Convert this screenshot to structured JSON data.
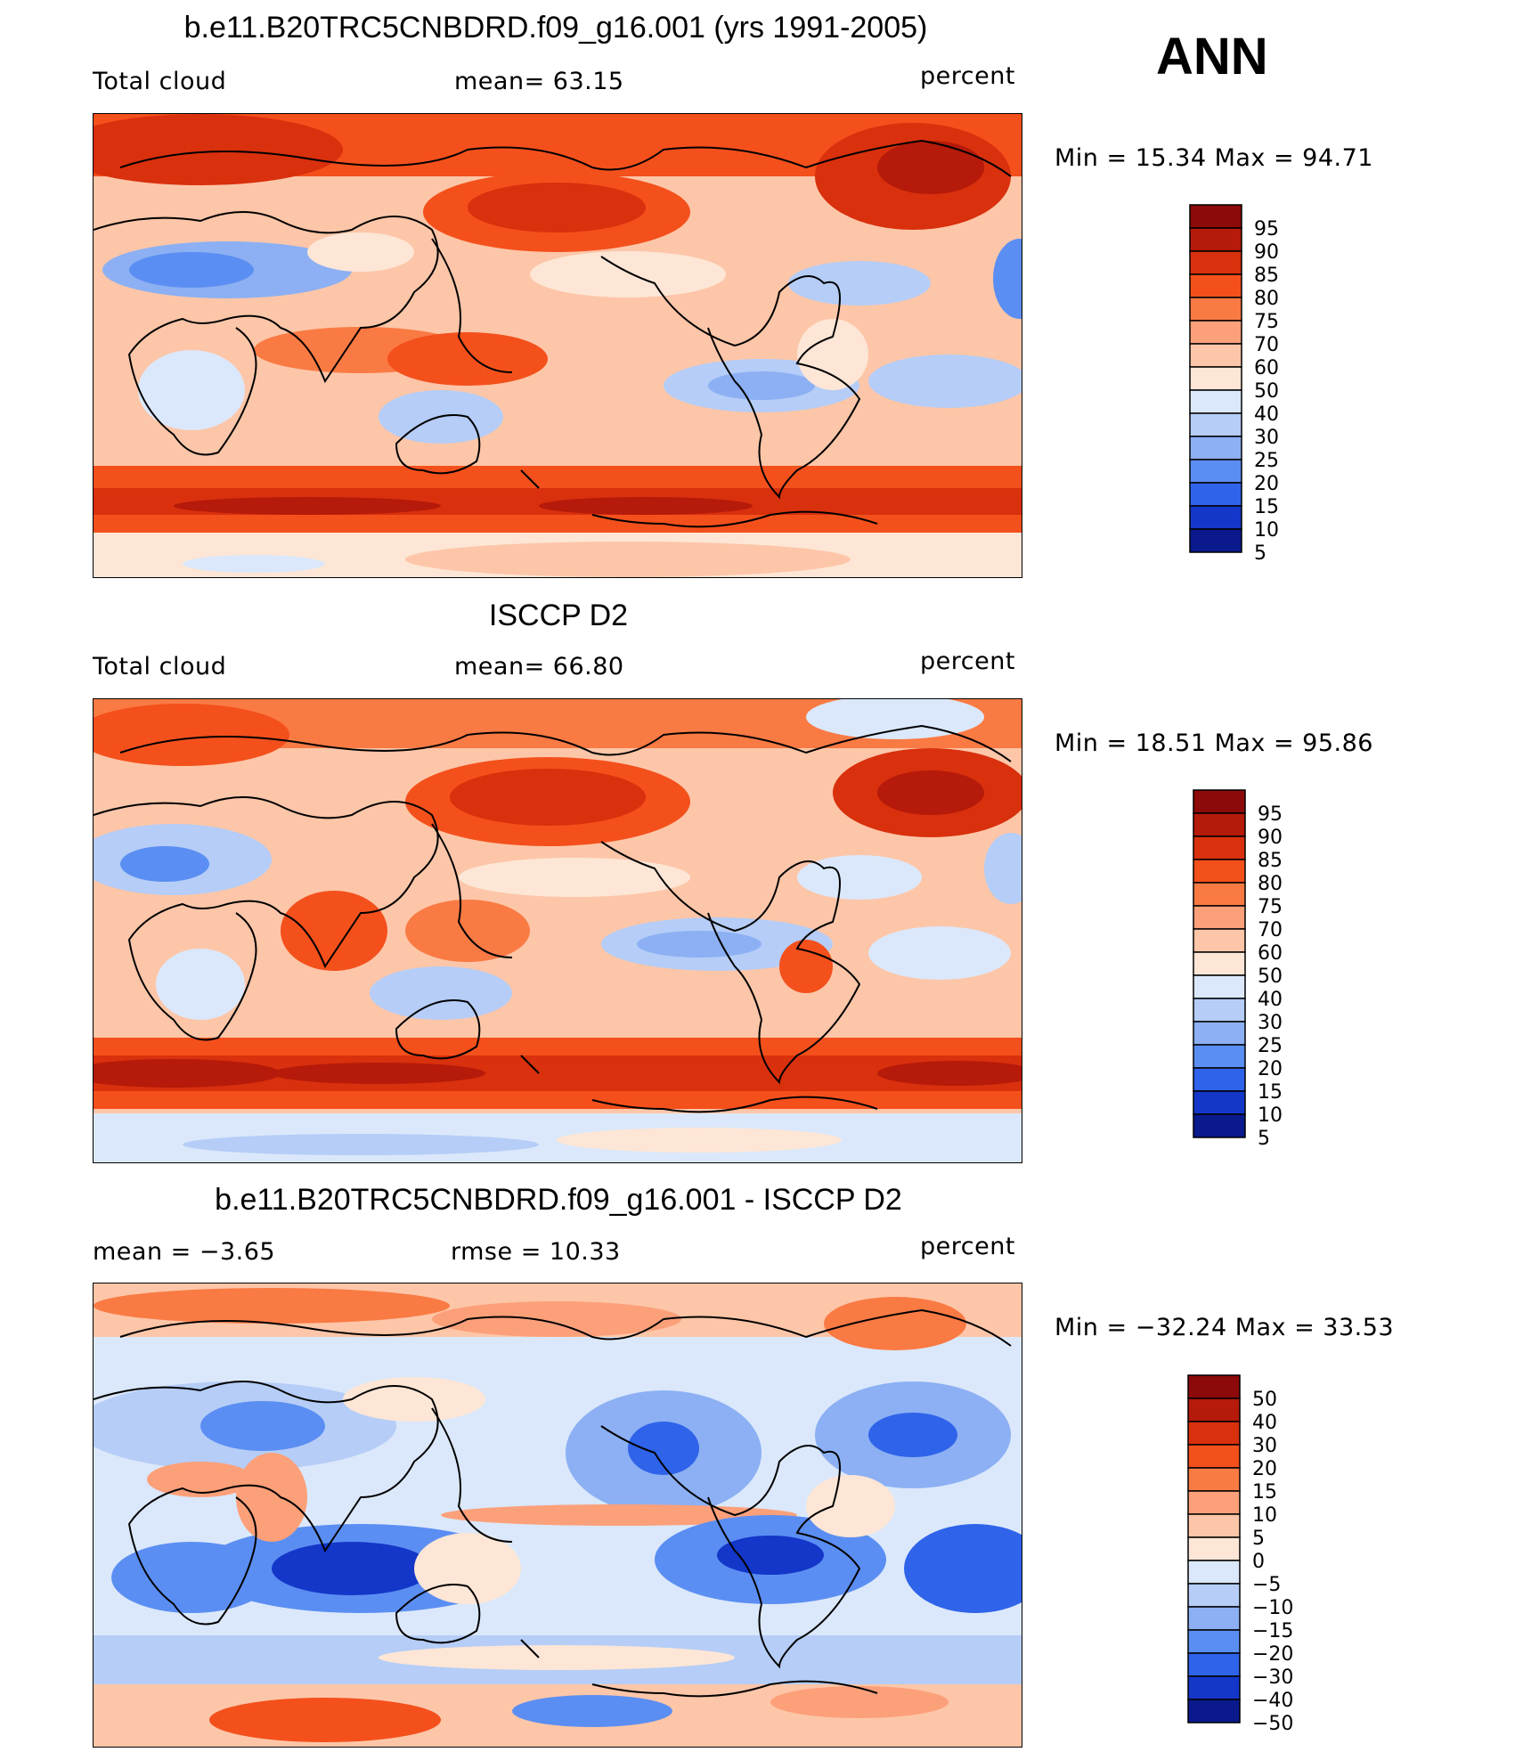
{
  "season": "ANN",
  "panels": [
    {
      "id": "model",
      "title": "b.e11.B20TRC5CNBDRD.f09_g16.001 (yrs 1991-2005)",
      "left_label": "Total cloud",
      "center_label": "mean=   63.15",
      "units": "percent",
      "minmax": "Min =   15.34  Max =   94.71",
      "levels": [
        "95",
        "90",
        "85",
        "80",
        "75",
        "70",
        "60",
        "50",
        "40",
        "30",
        "25",
        "20",
        "15",
        "10",
        "5"
      ],
      "colors": [
        "#8c0a0a",
        "#b51a0a",
        "#d9300d",
        "#f4501c",
        "#fa7a44",
        "#fca07a",
        "#fdc6a8",
        "#fde6d6",
        "#dbe8fb",
        "#b5cdf7",
        "#8cb0f3",
        "#5b8ef2",
        "#2f63ea",
        "#1437c9",
        "#0a1a8c"
      ]
    },
    {
      "id": "obs",
      "title": "ISCCP D2",
      "left_label": "Total cloud",
      "center_label": "mean=   66.80",
      "units": "percent",
      "minmax": "Min =   18.51  Max =   95.86",
      "levels": [
        "95",
        "90",
        "85",
        "80",
        "75",
        "70",
        "60",
        "50",
        "40",
        "30",
        "25",
        "20",
        "15",
        "10",
        "5"
      ],
      "colors": [
        "#8c0a0a",
        "#b51a0a",
        "#d9300d",
        "#f4501c",
        "#fa7a44",
        "#fca07a",
        "#fdc6a8",
        "#fde6d6",
        "#dbe8fb",
        "#b5cdf7",
        "#8cb0f3",
        "#5b8ef2",
        "#2f63ea",
        "#1437c9",
        "#0a1a8c"
      ]
    },
    {
      "id": "diff",
      "title": "b.e11.B20TRC5CNBDRD.f09_g16.001 - ISCCP D2",
      "left_label": "mean =    −3.65",
      "center_label": "rmse =    10.33",
      "units": "percent",
      "minmax": "Min = −32.24  Max =   33.53",
      "levels": [
        "50",
        "40",
        "30",
        "20",
        "15",
        "10",
        "5",
        "0",
        "−5",
        "−10",
        "−15",
        "−20",
        "−30",
        "−40",
        "−50"
      ],
      "colors": [
        "#8c0a0a",
        "#b51a0a",
        "#d9300d",
        "#f4501c",
        "#fa7a44",
        "#fca07a",
        "#fdc6a8",
        "#fde6d6",
        "#dbe8fb",
        "#b5cdf7",
        "#8cb0f3",
        "#5b8ef2",
        "#2f63ea",
        "#1437c9",
        "#0a1a8c"
      ]
    }
  ]
}
